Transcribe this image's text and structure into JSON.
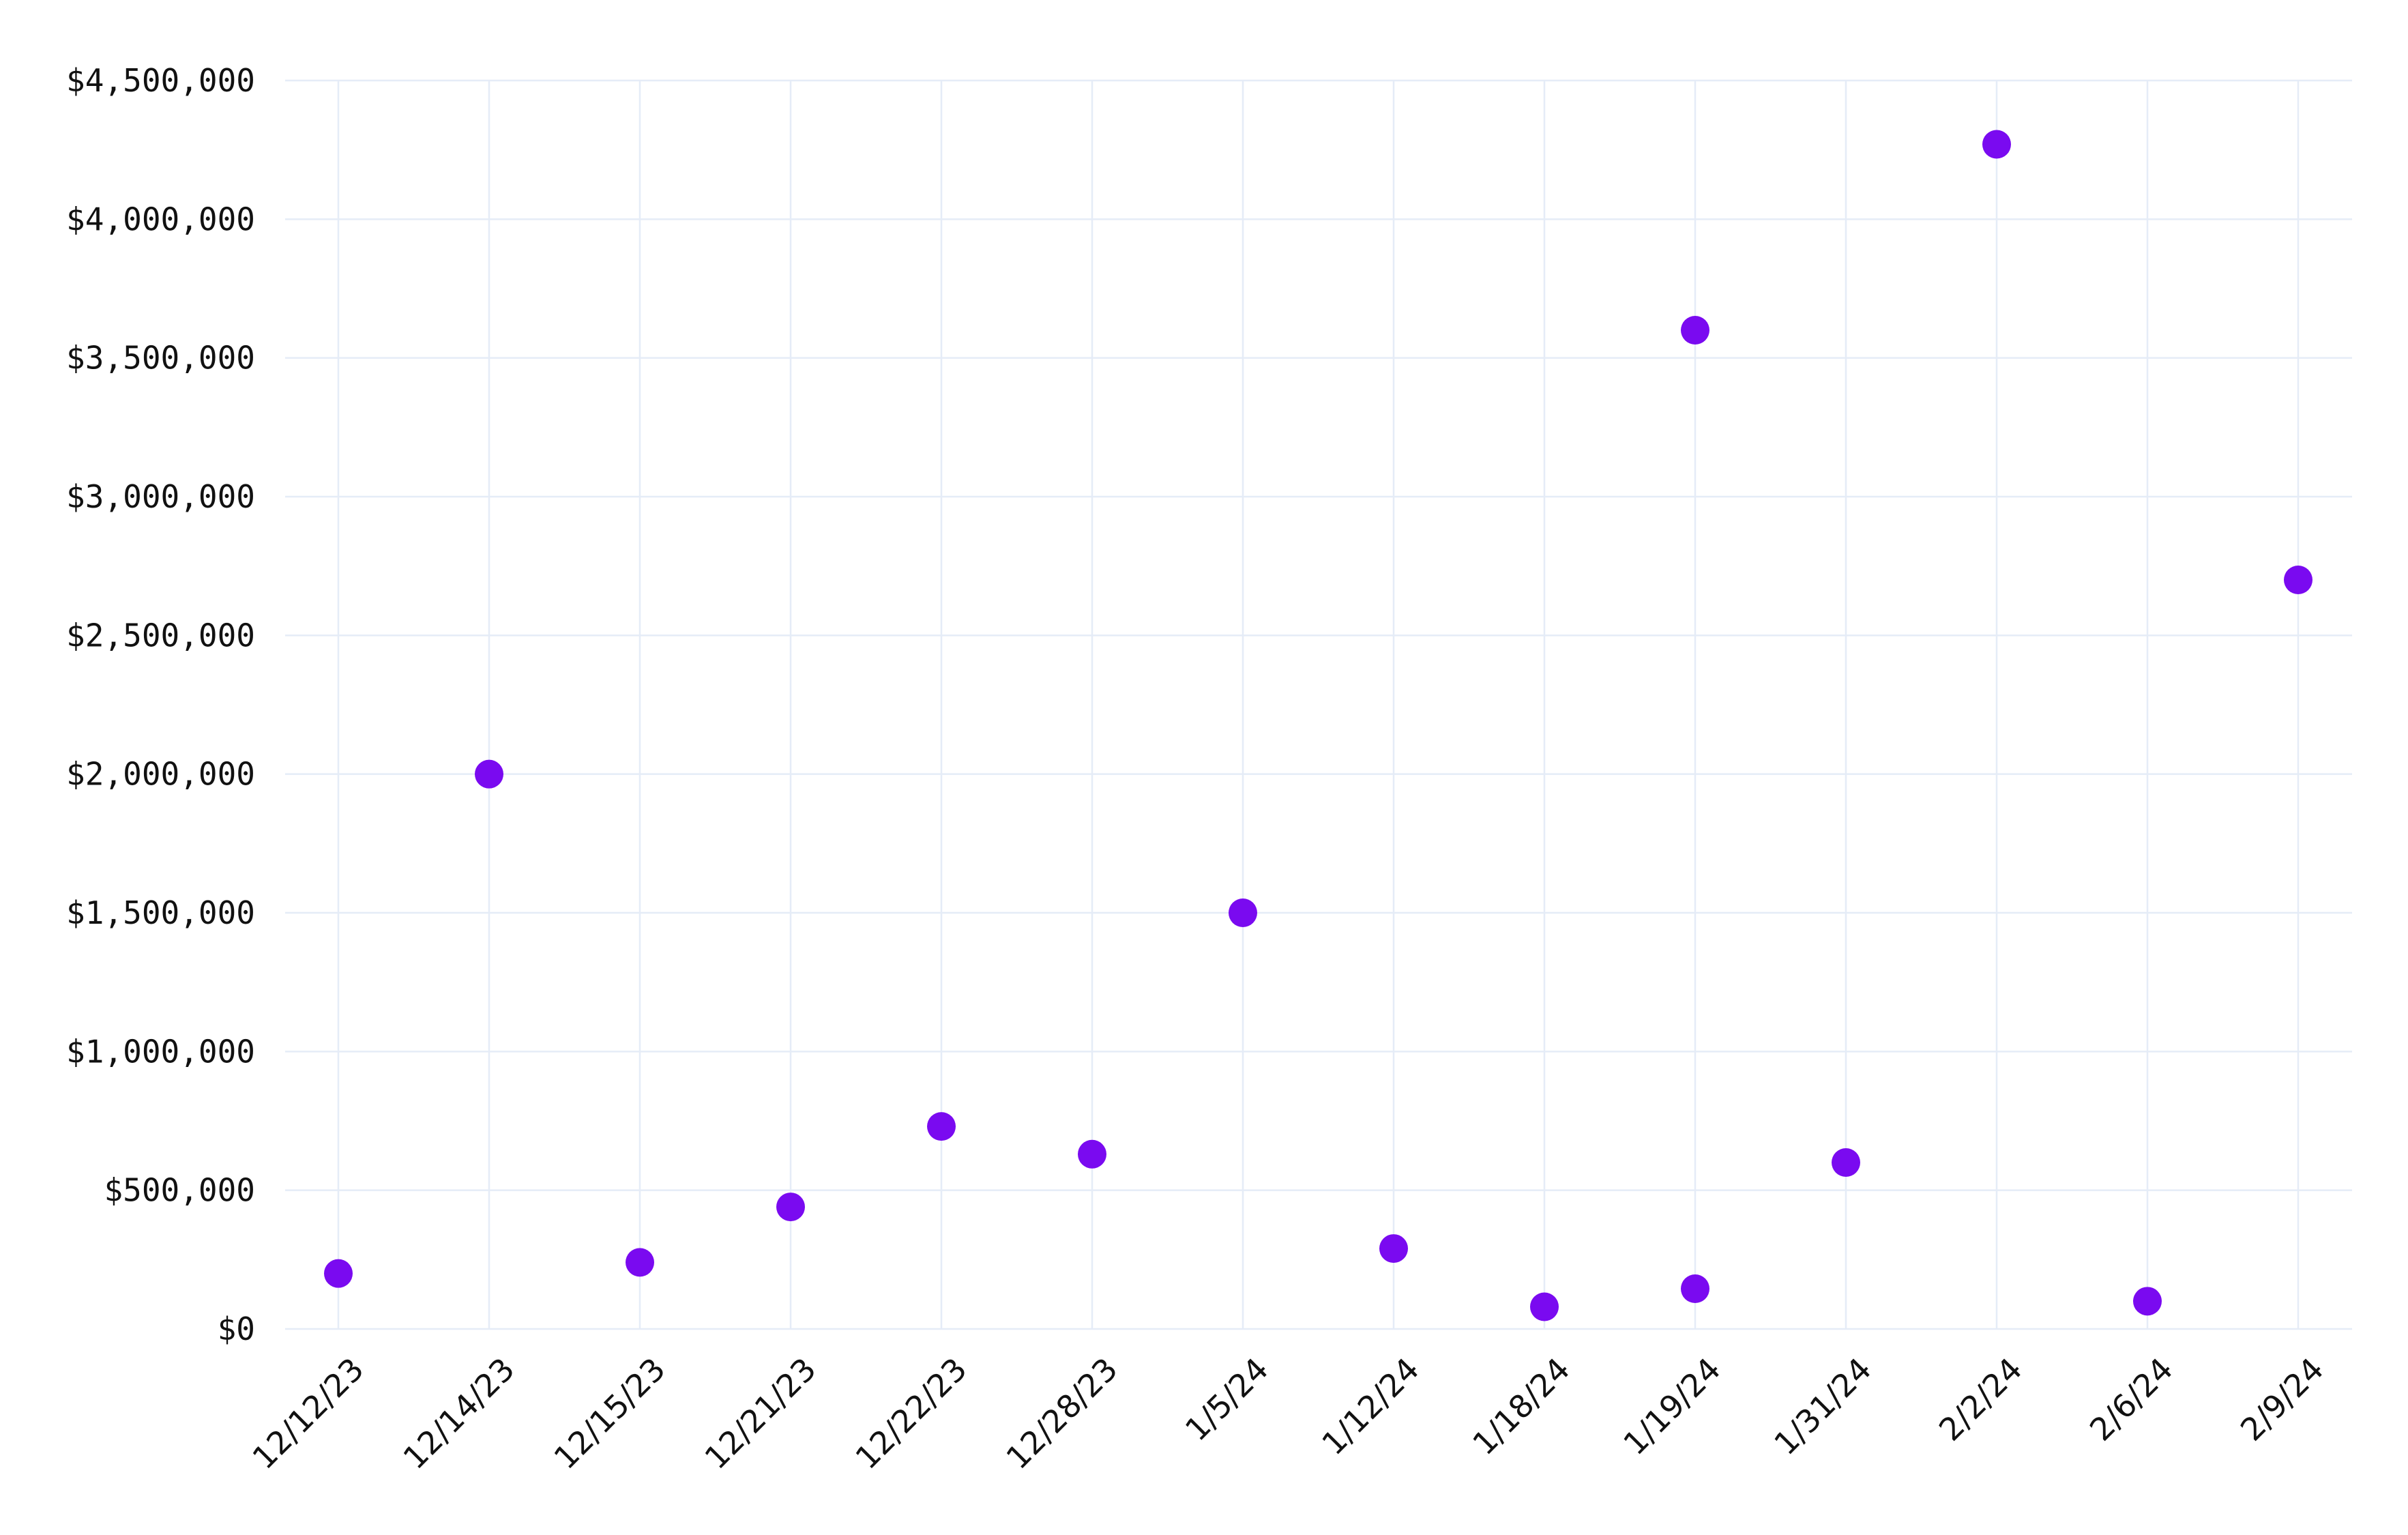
{
  "chart_data": {
    "type": "scatter",
    "title": "",
    "xlabel": "",
    "ylabel": "",
    "grid": true,
    "legend": "none",
    "categories": [
      "12/12/23",
      "12/14/23",
      "12/15/23",
      "12/21/23",
      "12/22/23",
      "12/28/23",
      "1/5/24",
      "1/12/24",
      "1/18/24",
      "1/19/24",
      "1/31/24",
      "2/2/24",
      "2/6/24",
      "2/9/24"
    ],
    "ylim": [
      0,
      4500000
    ],
    "y_ticks": [
      0,
      500000,
      1000000,
      1500000,
      2000000,
      2500000,
      3000000,
      3500000,
      4000000,
      4500000
    ],
    "y_tick_labels": [
      "$0",
      "$500,000",
      "$1,000,000",
      "$1,500,000",
      "$2,000,000",
      "$2,500,000",
      "$3,000,000",
      "$3,500,000",
      "$4,000,000",
      "$4,500,000"
    ],
    "color": "#7a0af0",
    "points": [
      {
        "x": "12/12/23",
        "y": 200000
      },
      {
        "x": "12/14/23",
        "y": 2000000
      },
      {
        "x": "12/15/23",
        "y": 240000
      },
      {
        "x": "12/21/23",
        "y": 440000
      },
      {
        "x": "12/22/23",
        "y": 730000
      },
      {
        "x": "12/28/23",
        "y": 630000
      },
      {
        "x": "1/5/24",
        "y": 1500000
      },
      {
        "x": "1/12/24",
        "y": 290000
      },
      {
        "x": "1/18/24",
        "y": 80000
      },
      {
        "x": "1/19/24",
        "y": 3600000
      },
      {
        "x": "1/19/24",
        "y": 145000
      },
      {
        "x": "1/31/24",
        "y": 600000
      },
      {
        "x": "2/2/24",
        "y": 4270000
      },
      {
        "x": "2/6/24",
        "y": 100000
      },
      {
        "x": "2/9/24",
        "y": 2700000
      }
    ]
  }
}
